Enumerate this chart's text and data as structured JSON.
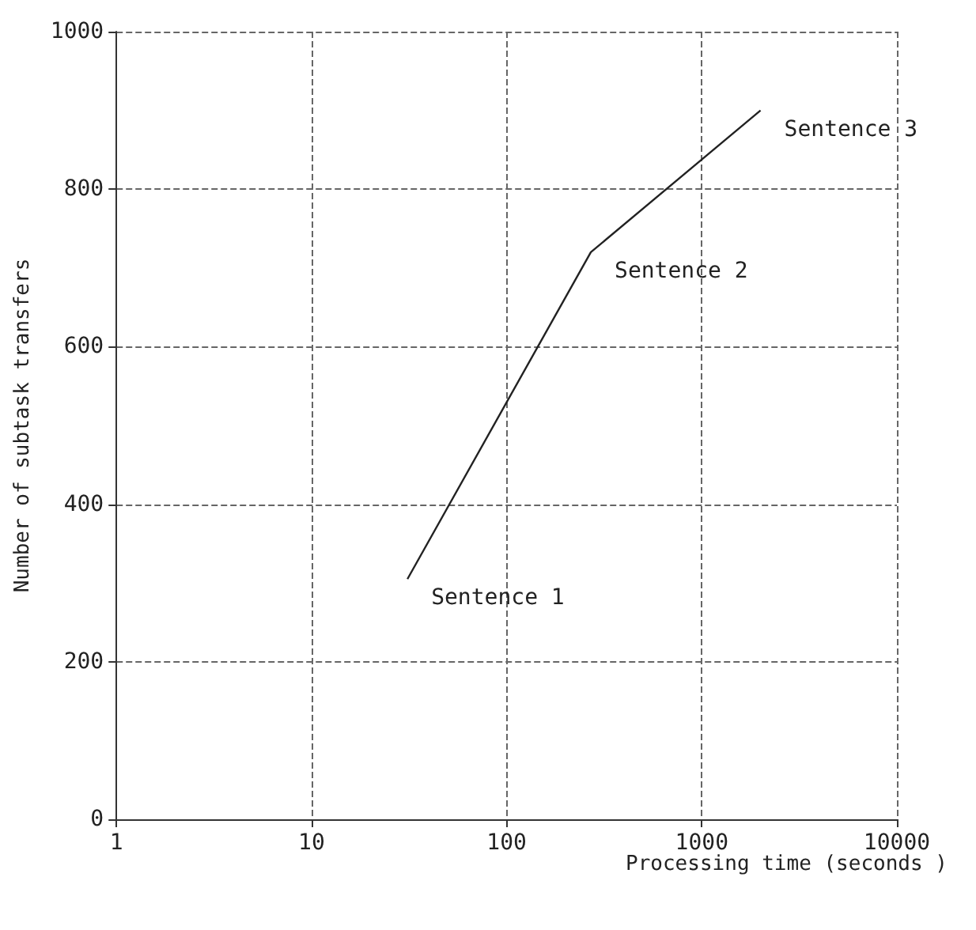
{
  "chart_data": {
    "type": "line",
    "xlabel": "Processing time (seconds )",
    "ylabel": "Number of subtask transfers",
    "x": [
      31,
      270,
      2000
    ],
    "series": [
      {
        "color": "#222222",
        "values": [
          305,
          720,
          900
        ]
      }
    ],
    "annotations": [
      {
        "text": "Sentence 1",
        "x": 31,
        "y": 305
      },
      {
        "text": "Sentence 2",
        "x": 270,
        "y": 720
      },
      {
        "text": "Sentence 3",
        "x": 2000,
        "y": 900
      }
    ],
    "log": "x",
    "xlim": [
      1,
      10000
    ],
    "xticks": [
      1,
      10,
      100,
      1000,
      10000
    ],
    "ylim": [
      0,
      1000
    ],
    "yticks": [
      0,
      200,
      400,
      600,
      800,
      1000
    ],
    "grid": true,
    "marker": "none",
    "line_style": "solid"
  }
}
